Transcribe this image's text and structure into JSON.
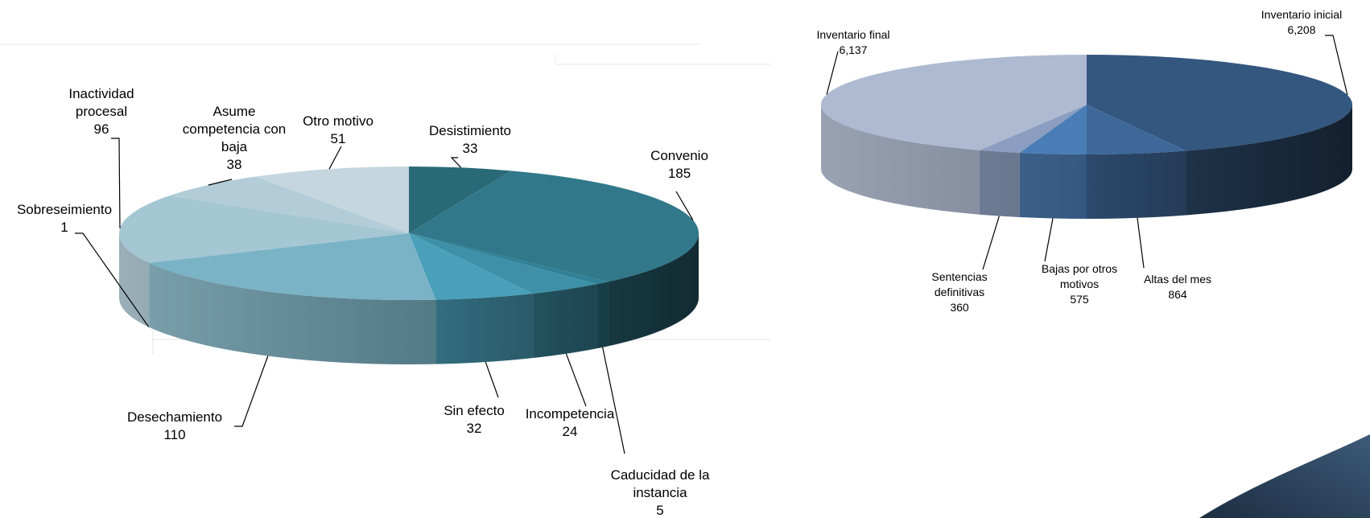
{
  "chart_data": [
    {
      "type": "pie",
      "title": "",
      "slices": [
        {
          "label": "Desistimiento",
          "value": 33,
          "color": "#2a6a77"
        },
        {
          "label": "Convenio",
          "value": 185,
          "color": "#31788a"
        },
        {
          "label": "Caducidad de la instancia",
          "value": 5,
          "color": "#2f8196"
        },
        {
          "label": "Incompetencia",
          "value": 24,
          "color": "#3d90a8"
        },
        {
          "label": "Sin efecto",
          "value": 32,
          "color": "#4aa0ba"
        },
        {
          "label": "Desechamiento",
          "value": 110,
          "color": "#7ab3c6"
        },
        {
          "label": "Sobreseimiento",
          "value": 1,
          "color": "#8dbccc"
        },
        {
          "label": "Inactividad procesal",
          "value": 96,
          "color": "#a5c6d3"
        },
        {
          "label": "Asume competencia con baja",
          "value": 38,
          "color": "#b2cdd8"
        },
        {
          "label": "Otro motivo",
          "value": 51,
          "color": "#c5d6df"
        }
      ],
      "label_lines": [
        [
          "Desistimiento",
          "33"
        ],
        [
          "Convenio",
          "185"
        ],
        [
          "Caducidad de la",
          "instancia",
          "5"
        ],
        [
          "Incompetencia",
          "24"
        ],
        [
          "Sin efecto",
          "32"
        ],
        [
          "Desechamiento",
          "110"
        ],
        [
          "Sobreseimiento",
          "1"
        ],
        [
          "Inactividad",
          "procesal",
          "96"
        ],
        [
          "Asume",
          "competencia con",
          "baja",
          "38"
        ],
        [
          "Otro motivo",
          "51"
        ]
      ]
    },
    {
      "type": "pie",
      "title": "",
      "slices": [
        {
          "label": "Inventario inicial",
          "value": 6208,
          "color": "#34577f"
        },
        {
          "label": "Altas del mes",
          "value": 864,
          "color": "#3e6899"
        },
        {
          "label": "Bajas por otros motivos",
          "value": 575,
          "color": "#4a7db5"
        },
        {
          "label": "Sentencias definitivas",
          "value": 360,
          "color": "#8b9dc0"
        },
        {
          "label": "Inventario final",
          "value": 6137,
          "color": "#aebad2"
        }
      ],
      "label_lines": [
        [
          "Inventario inicial",
          "6,208"
        ],
        [
          "Altas del mes",
          "864"
        ],
        [
          "Bajas por otros",
          "motivos",
          "575"
        ],
        [
          "Sentencias",
          "definitivas",
          "360"
        ],
        [
          "Inventario final",
          "6,137"
        ]
      ]
    }
  ]
}
